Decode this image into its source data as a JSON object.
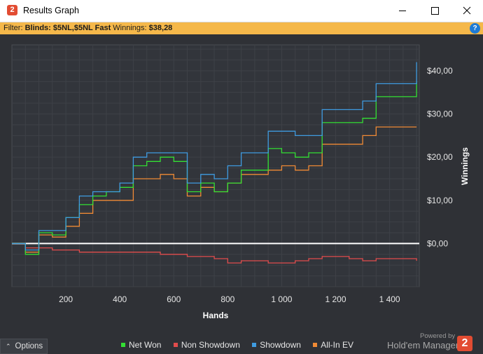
{
  "window": {
    "title": "Results Graph",
    "app_icon_glyph": "2",
    "controls": [
      "minimize-icon",
      "maximize-icon",
      "close-icon"
    ]
  },
  "filter": {
    "prefix": "Filter:",
    "blinds_label": "Blinds:",
    "blinds_value": "$5NL,$5NL Fast",
    "winnings_label": "Winnings:",
    "winnings_value": "$38,28",
    "help_glyph": "?"
  },
  "footer": {
    "options_label": "Options",
    "powered_by": "Powered by",
    "brand": "Hold'em Manager",
    "brand_logo_glyph": "2"
  },
  "colors": {
    "net_won": "#33e033",
    "non_showdown": "#e24c4c",
    "showdown": "#3f9be0",
    "all_in_ev": "#f08a35",
    "zero_line": "#ffffff",
    "accent": "#f5b84a"
  },
  "chart_data": {
    "type": "line",
    "xlabel": "Hands",
    "ylabel": "Winnings",
    "xlim": [
      0,
      1510
    ],
    "ylim": [
      -10,
      46
    ],
    "x_ticks": [
      200,
      400,
      600,
      800,
      1000,
      1200,
      1400
    ],
    "x_tick_labels": [
      "200",
      "400",
      "600",
      "800",
      "1 000",
      "1 200",
      "1 400"
    ],
    "y_ticks": [
      0,
      10,
      20,
      30,
      40
    ],
    "y_tick_labels": [
      "$0,00",
      "$10,00",
      "$20,00",
      "$30,00",
      "$40,00"
    ],
    "grid": true,
    "legend_position": "bottom",
    "x": [
      0,
      50,
      100,
      150,
      200,
      250,
      300,
      350,
      400,
      450,
      500,
      550,
      600,
      650,
      700,
      750,
      800,
      850,
      900,
      950,
      1000,
      1050,
      1100,
      1150,
      1200,
      1250,
      1300,
      1350,
      1400,
      1450,
      1500
    ],
    "series": [
      {
        "name": "Net Won",
        "values": [
          0,
          -2.5,
          2.5,
          2,
          6,
          9,
          11,
          12,
          13,
          18,
          19,
          20,
          19,
          12,
          14,
          12,
          14,
          17,
          17,
          22,
          21,
          20,
          21,
          28,
          28,
          28,
          29,
          34,
          34,
          34,
          37.5
        ]
      },
      {
        "name": "Non Showdown",
        "values": [
          0,
          -1,
          -1,
          -1.5,
          -1.5,
          -2,
          -2,
          -2,
          -2,
          -2,
          -2,
          -2.5,
          -2.5,
          -3,
          -3,
          -3.5,
          -4.5,
          -4,
          -4,
          -4.5,
          -4.5,
          -4,
          -3.5,
          -3,
          -3,
          -3.5,
          -4,
          -3.5,
          -3.5,
          -3.5,
          -4
        ]
      },
      {
        "name": "Showdown",
        "values": [
          0,
          -1.5,
          3,
          3,
          6,
          11,
          12,
          12,
          14,
          20,
          21,
          21,
          21,
          14,
          16,
          15,
          18,
          21,
          21,
          26,
          26,
          25,
          25,
          31,
          31,
          31,
          33,
          37,
          37,
          37,
          42
        ]
      },
      {
        "name": "All-In EV",
        "values": [
          0,
          -2,
          2,
          1.5,
          4,
          7,
          10,
          10,
          10,
          15,
          15,
          16,
          15,
          11,
          13,
          12,
          14,
          16,
          16,
          17,
          18,
          17,
          18,
          23,
          23,
          23,
          25,
          27,
          27,
          27,
          27
        ]
      }
    ]
  }
}
